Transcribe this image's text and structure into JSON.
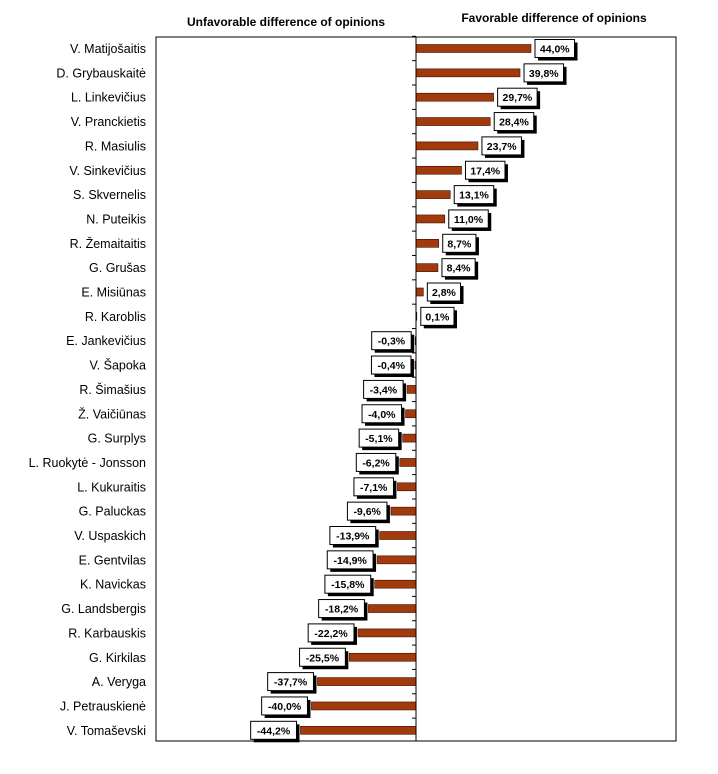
{
  "chart_data": {
    "type": "bar",
    "orientation": "horizontal",
    "headers": {
      "left": "Unfavorable difference of opinions",
      "right": "Favorable difference of opinions"
    },
    "xlim": [
      -50,
      50
    ],
    "bar_color": "#a33a0c",
    "categories": [
      "V. Matijošaitis",
      "D. Grybauskaitė",
      "L. Linkevičius",
      "V. Pranckietis",
      "R. Masiulis",
      "V. Sinkevičius",
      "S. Skvernelis",
      "N. Puteikis",
      "R. Žemaitaitis",
      "G. Grušas",
      "E. Misiūnas",
      "R. Karoblis",
      "E. Jankevičius",
      "V. Šapoka",
      "R. Šimašius",
      "Ž. Vaičiūnas",
      "G. Surplys",
      "L. Ruokytė - Jonsson",
      "L. Kukuraitis",
      "G. Paluckas",
      "V. Uspaskich",
      "E. Gentvilas",
      "K. Navickas",
      "G. Landsbergis",
      "R. Karbauskis",
      "G. Kirkilas",
      "A. Veryga",
      "J. Petrauskienė",
      "V. Tomaševski"
    ],
    "values": [
      44.0,
      39.8,
      29.7,
      28.4,
      23.7,
      17.4,
      13.1,
      11.0,
      8.7,
      8.4,
      2.8,
      0.1,
      -0.3,
      -0.4,
      -3.4,
      -4.0,
      -5.1,
      -6.2,
      -7.1,
      -9.6,
      -13.9,
      -14.9,
      -15.8,
      -18.2,
      -22.2,
      -25.5,
      -37.7,
      -40.0,
      -44.2
    ],
    "labels": [
      "44,0%",
      "39,8%",
      "29,7%",
      "28,4%",
      "23,7%",
      "17,4%",
      "13,1%",
      "11,0%",
      "8,7%",
      "8,4%",
      "2,8%",
      "0,1%",
      "-0,3%",
      "-0,4%",
      "-3,4%",
      "-4,0%",
      "-5,1%",
      "-6,2%",
      "-7,1%",
      "-9,6%",
      "-13,9%",
      "-14,9%",
      "-15,8%",
      "-18,2%",
      "-22,2%",
      "-25,5%",
      "-37,7%",
      "-40,0%",
      "-44,2%"
    ]
  }
}
